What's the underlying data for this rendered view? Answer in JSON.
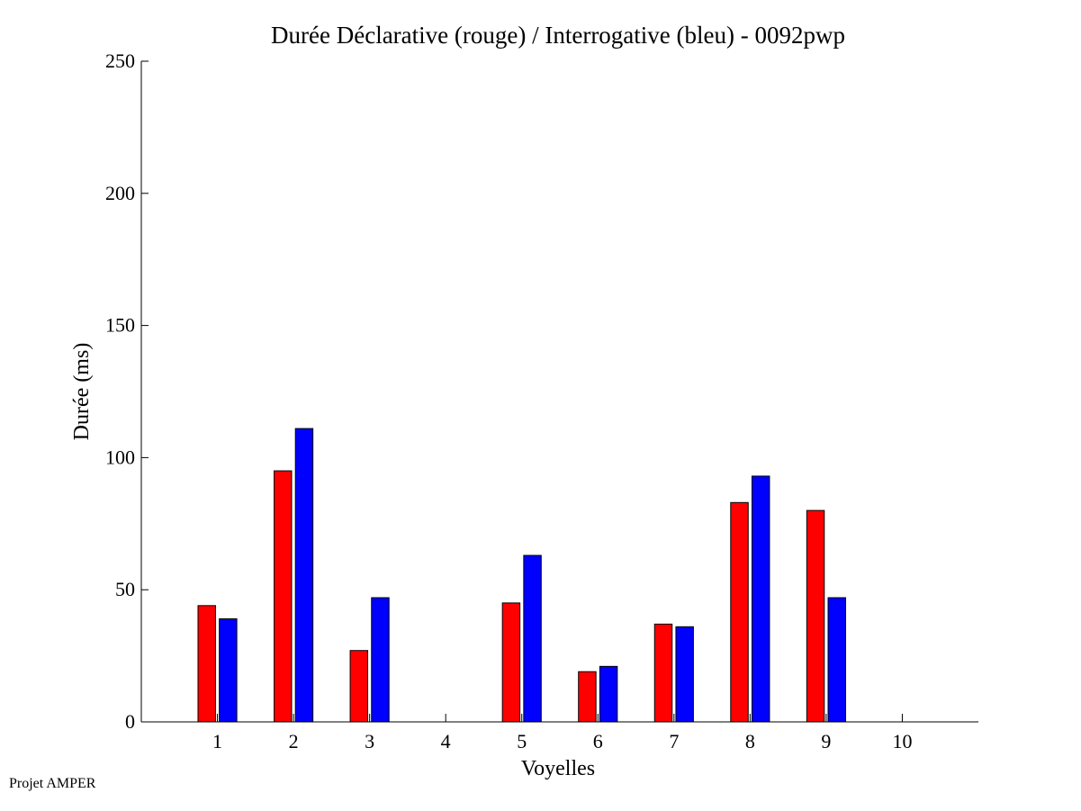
{
  "chart_data": {
    "type": "bar",
    "title": "Durée Déclarative (rouge) / Interrogative (bleu) - 0092pwp",
    "xlabel": "Voyelles",
    "ylabel": "Durée (ms)",
    "ylim": [
      0,
      250
    ],
    "yticks": [
      0,
      50,
      100,
      150,
      200,
      250
    ],
    "categories": [
      "1",
      "2",
      "3",
      "4",
      "5",
      "6",
      "7",
      "8",
      "9",
      "10"
    ],
    "series": [
      {
        "name": "Déclarative",
        "color": "#ff0000",
        "values": [
          44,
          95,
          27,
          0,
          45,
          19,
          37,
          83,
          80,
          0
        ]
      },
      {
        "name": "Interrogative",
        "color": "#0000ff",
        "values": [
          39,
          111,
          47,
          0,
          63,
          21,
          36,
          93,
          47,
          0
        ]
      }
    ],
    "grid": false
  },
  "footer": {
    "text": "Projet AMPER"
  }
}
